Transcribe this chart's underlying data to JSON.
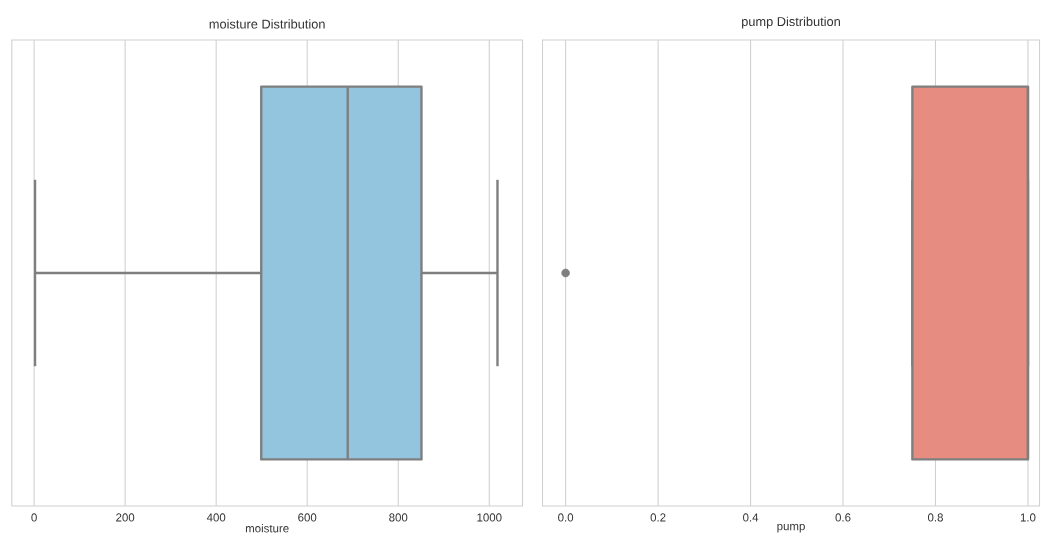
{
  "chart_data": [
    {
      "type": "box",
      "title": "moisture Distribution",
      "xlabel": "moisture",
      "orientation": "horizontal",
      "categories": [
        null
      ],
      "color": "#93c6de",
      "boxes": [
        {
          "low": 2,
          "q1": 499,
          "median": 689,
          "q3": 851,
          "high": 1018
        }
      ],
      "xlim": [
        -49,
        1073
      ],
      "xticks": [
        0,
        200,
        400,
        600,
        800,
        1000
      ],
      "grid": "x",
      "tick_labels": "x"
    },
    {
      "type": "box",
      "title": "pump Distribution",
      "xlabel": "pump",
      "orientation": "horizontal",
      "categories": [
        null
      ],
      "color": "#e68c80",
      "boxes": [
        {
          "low": 0.75,
          "q1": 0.75,
          "median": 1.0,
          "q3": 1.0,
          "high": 1.0,
          "outliers": [
            0.0
          ]
        }
      ],
      "xlim": [
        -0.05,
        1.025
      ],
      "xticks": [
        {
          "value": 0,
          "label": "0.0"
        },
        0.2,
        0.4,
        0.6,
        0.8,
        {
          "value": 1,
          "label": "1.0"
        }
      ],
      "grid": "x",
      "tick_labels": "x"
    }
  ]
}
